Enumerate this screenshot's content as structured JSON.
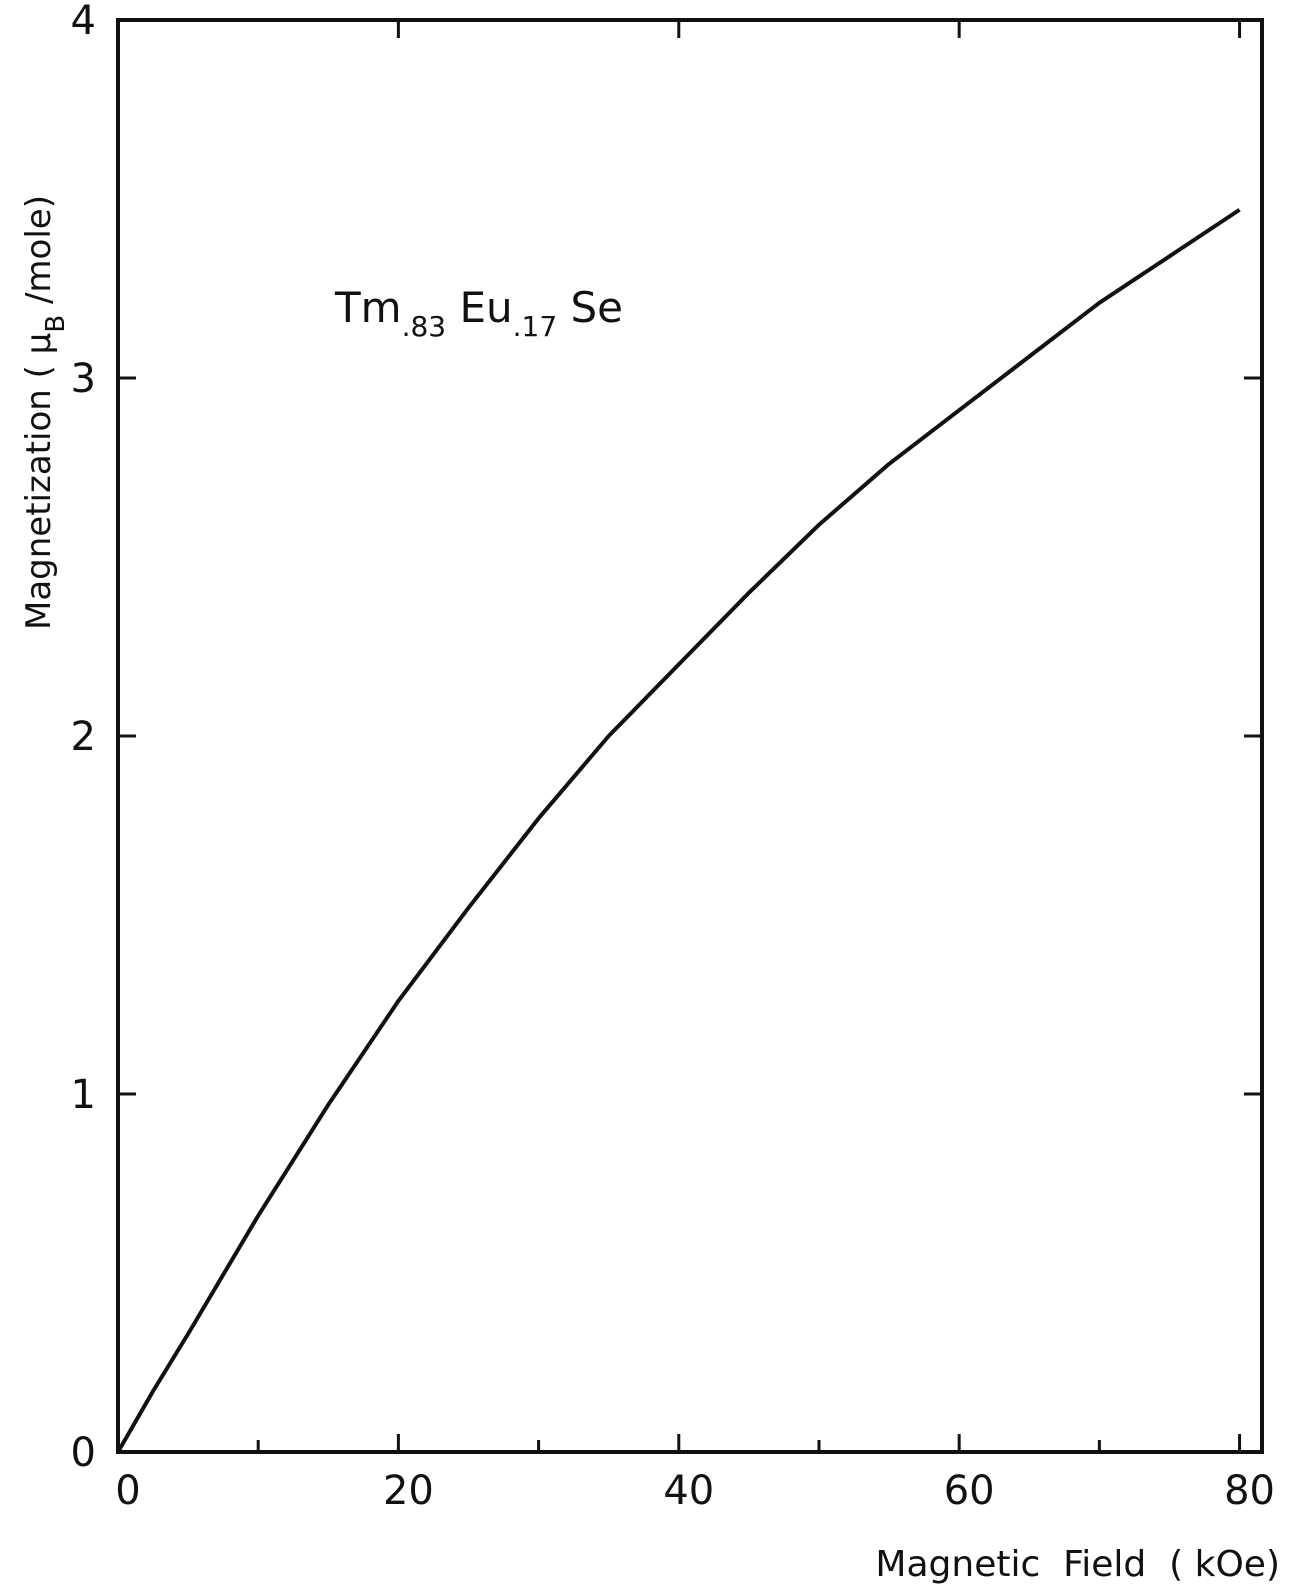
{
  "chart_data": {
    "type": "line",
    "annotation": [
      {
        "text": "Tm"
      },
      {
        "text": ".83",
        "sub": true
      },
      {
        "text": " Eu"
      },
      {
        "text": ".17",
        "sub": true
      },
      {
        "text": " Se"
      }
    ],
    "xlabel": "Magnetic  Field  ( kOe)",
    "ylabel": [
      {
        "text": "Magnetization  ( "
      },
      {
        "text": "μ"
      },
      {
        "text": "B",
        "sub": true
      },
      {
        "text": " /mole)"
      }
    ],
    "x": [
      0,
      2.5,
      5,
      10,
      15,
      20,
      25,
      30,
      35,
      40,
      45,
      50,
      55,
      60,
      65,
      70,
      75,
      80
    ],
    "series": [
      {
        "color": "#111111",
        "values": [
          0,
          0.17,
          0.33,
          0.66,
          0.97,
          1.26,
          1.52,
          1.77,
          2.0,
          2.2,
          2.4,
          2.59,
          2.76,
          2.91,
          3.06,
          3.21,
          3.34,
          3.47
        ]
      }
    ],
    "xlim": [
      0,
      81.6
    ],
    "ylim": [
      0,
      4
    ],
    "xticks": [
      0,
      20,
      40,
      60,
      80
    ],
    "xminorticks": [
      10,
      30,
      50,
      70
    ],
    "yticks": [
      0,
      1,
      2,
      3,
      4
    ]
  }
}
